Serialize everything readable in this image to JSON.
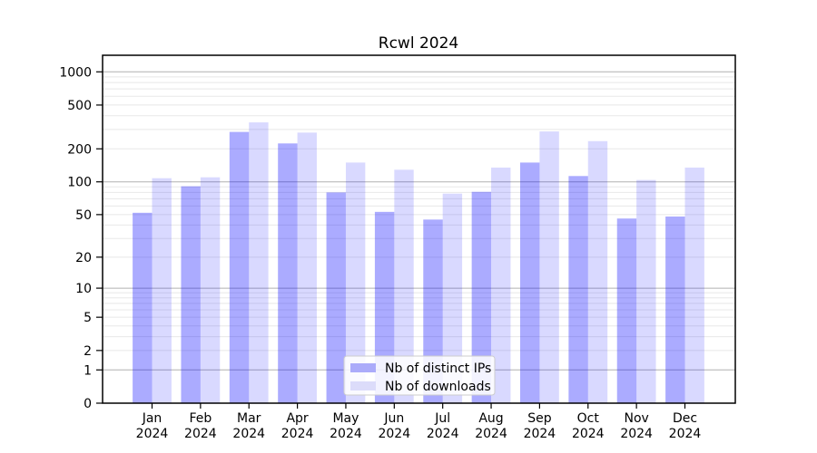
{
  "chart_data": {
    "type": "bar",
    "title": "Rcwl 2024",
    "categories": [
      "Jan 2024",
      "Feb 2024",
      "Mar 2024",
      "Apr 2024",
      "May 2024",
      "Jun 2024",
      "Jul 2024",
      "Aug 2024",
      "Sep 2024",
      "Oct 2024",
      "Nov 2024",
      "Dec 2024"
    ],
    "series": [
      {
        "name": "Nb of distinct IPs",
        "color": "#0000ff",
        "fill_opacity": 0.33,
        "legend_swatch_color": "#ababfa",
        "values": [
          52,
          91,
          285,
          224,
          80,
          53,
          45,
          81,
          150,
          113,
          46,
          48
        ]
      },
      {
        "name": "Nb of downloads",
        "color": "#0000ff",
        "fill_opacity": 0.15,
        "legend_swatch_color": "#dcdcfa",
        "values": [
          108,
          110,
          348,
          281,
          150,
          129,
          78,
          135,
          288,
          235,
          104,
          135
        ]
      }
    ],
    "y_scale": "log10(value+1)",
    "y_ticks": [
      0,
      1,
      2,
      5,
      10,
      20,
      50,
      100,
      200,
      500,
      1000
    ],
    "ylim": [
      0,
      1400
    ],
    "xlabel": "",
    "ylabel": "",
    "grid": true,
    "gridline_major_values": [
      1,
      10,
      100,
      1000
    ],
    "gridline_minor_multiples": [
      2,
      3,
      4,
      5,
      6,
      7,
      8,
      9
    ],
    "legend_position": "inside-bottom-center",
    "colors": {
      "background": "#ffffff",
      "spine": "#000000",
      "grid_major": "#b0b0b0",
      "grid_minor": "#e8e8e8",
      "legend_border": "#cccccc",
      "legend_background": "#ffffff"
    }
  }
}
